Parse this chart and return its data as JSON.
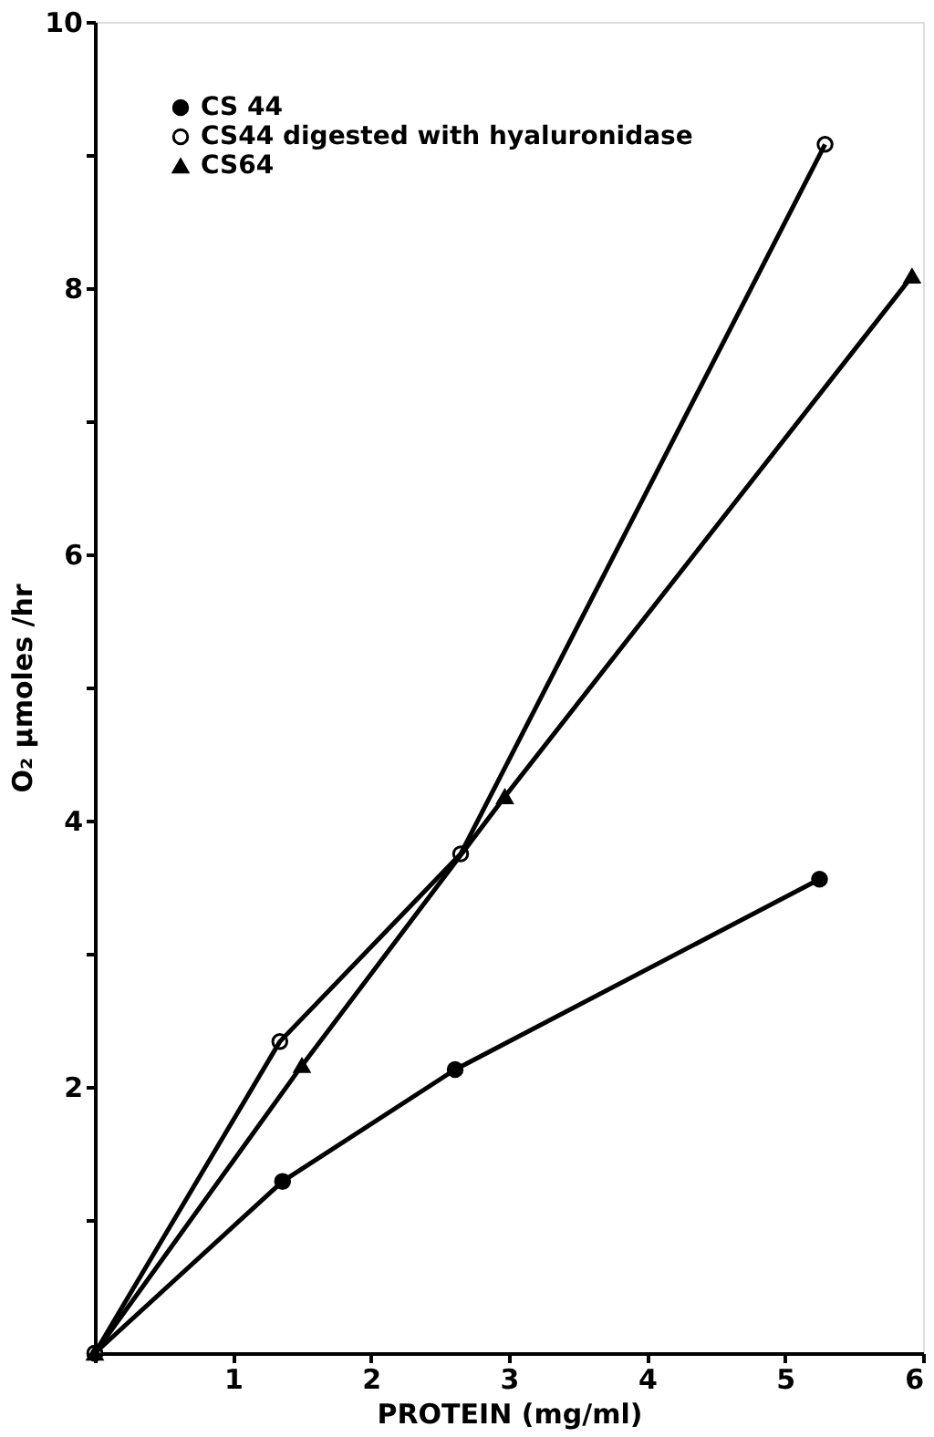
{
  "chart_data": {
    "type": "line",
    "xlabel": "PROTEIN (mg/ml)",
    "ylabel": "O₂ μmoles /hr",
    "series": [
      {
        "name": "CS 44",
        "color": "#000000",
        "marker": "circle",
        "x": [
          0,
          1.36,
          2.61,
          5.25
        ],
        "values": [
          0,
          1.29,
          2.13,
          3.56
        ]
      },
      {
        "name": "CS44 digested with hyaluronidase",
        "color": "#000000",
        "marker": "circle",
        "x": [
          0,
          1.34,
          2.65,
          5.29
        ],
        "values": [
          0,
          2.34,
          3.75,
          9.08
        ]
      },
      {
        "name": "CS64",
        "color": "#000000",
        "marker": "triangle",
        "x": [
          0,
          1.5,
          2.97,
          5.92
        ],
        "values": [
          0,
          2.16,
          4.18,
          8.09
        ]
      }
    ],
    "xlim": [
      0,
      6
    ],
    "ylim": [
      0,
      10
    ],
    "xticks": [
      {
        "value": 0,
        "label": null
      },
      1,
      2,
      3,
      4,
      5,
      6
    ],
    "yticks": [
      {
        "value": 0,
        "label": null
      },
      {
        "value": 1,
        "label": null
      },
      2,
      {
        "value": 3,
        "label": null
      },
      4,
      {
        "value": 5,
        "label": null
      },
      6,
      {
        "value": 7,
        "label": null
      },
      8,
      {
        "value": 9,
        "label": null
      },
      10
    ],
    "grid": false,
    "legend": "top left",
    "line_style": "solid"
  }
}
